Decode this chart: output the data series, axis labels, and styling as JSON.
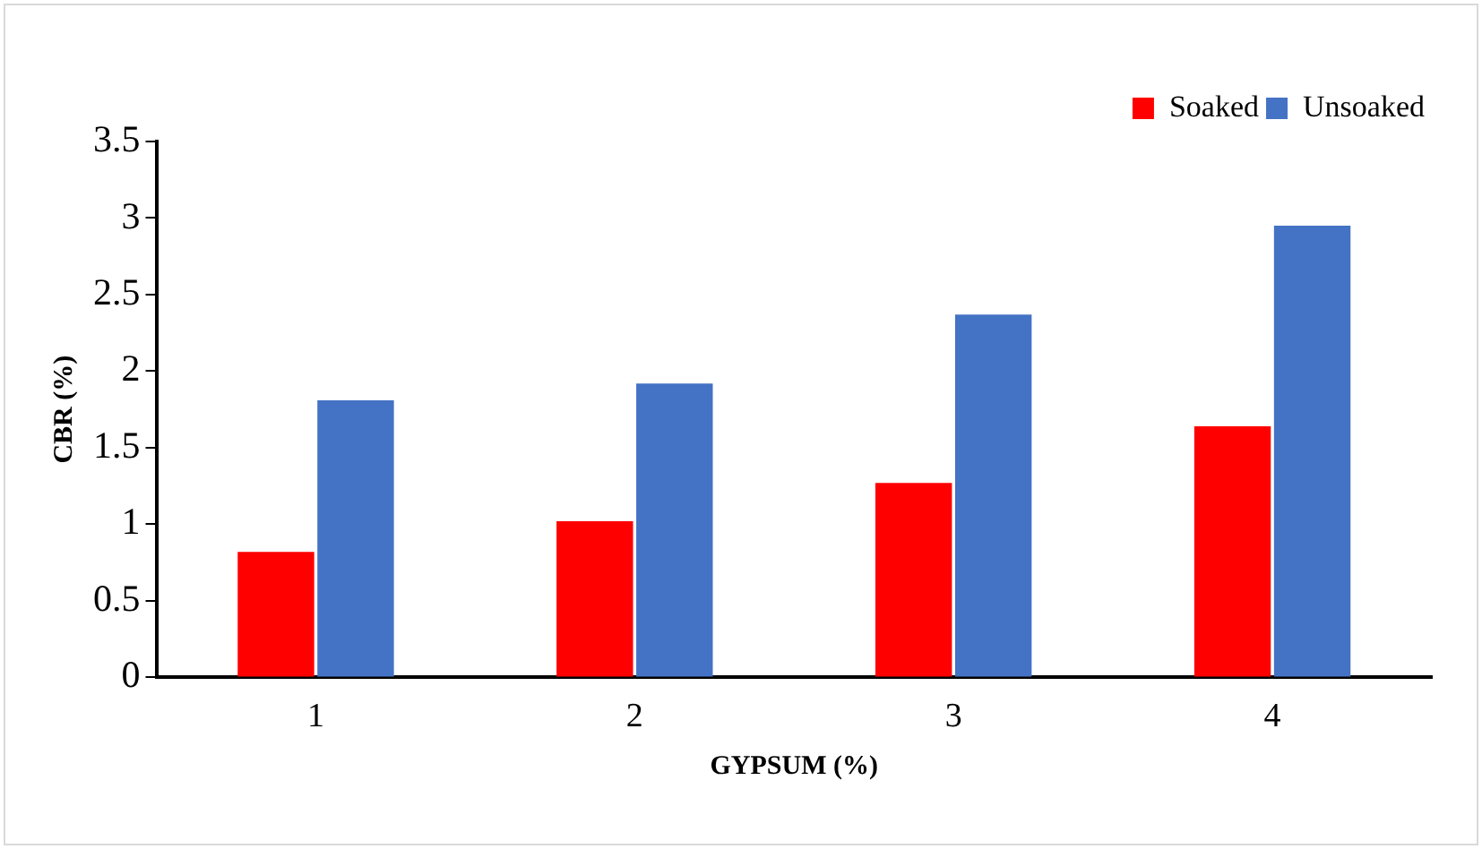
{
  "chart_data": {
    "type": "bar",
    "xlabel": "GYPSUM (%)",
    "ylabel": "CBR (%)",
    "categories": [
      "1",
      "2",
      "3",
      "4"
    ],
    "series": [
      {
        "name": "Soaked",
        "color": "#ff0000",
        "values": [
          0.82,
          1.02,
          1.27,
          1.64
        ]
      },
      {
        "name": "Unsoaked",
        "color": "#4472c4",
        "values": [
          1.81,
          1.92,
          2.37,
          2.95
        ]
      }
    ],
    "ylim": [
      0,
      3.5
    ],
    "yticks": [
      0,
      0.5,
      1,
      1.5,
      2,
      2.5,
      3,
      3.5
    ],
    "grid": false,
    "legend": "top right"
  }
}
